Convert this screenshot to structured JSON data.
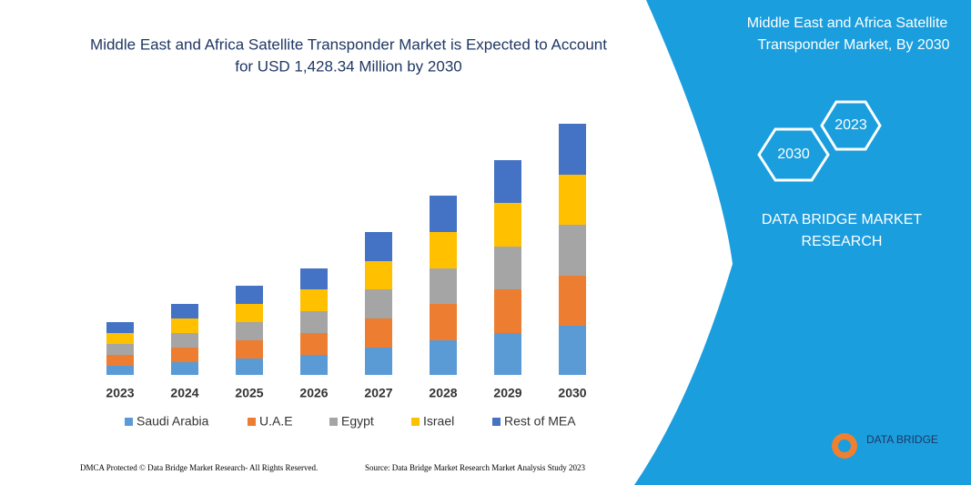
{
  "chart_data": {
    "type": "stacked_bar",
    "title": "Middle East and Africa Satellite Transponder Market is Expected to Account",
    "subtitle": "for USD 1,428.34 Million by 2030",
    "categories": [
      "2023",
      "2024",
      "2025",
      "2026",
      "2027",
      "2028",
      "2029",
      "2030"
    ],
    "series": [
      {
        "name": "Saudi Arabia",
        "color": "#5b9bd5",
        "values": [
          10,
          14,
          18,
          22,
          30,
          38,
          46,
          54
        ]
      },
      {
        "name": "U.A.E",
        "color": "#ed7d31",
        "values": [
          12,
          16,
          20,
          24,
          32,
          40,
          48,
          55
        ]
      },
      {
        "name": "Egypt",
        "color": "#a5a5a5",
        "values": [
          12,
          16,
          20,
          24,
          32,
          39,
          47,
          56
        ]
      },
      {
        "name": "Israel",
        "color": "#ffc000",
        "values": [
          12,
          16,
          20,
          24,
          31,
          40,
          48,
          55
        ]
      },
      {
        "name": "Rest of MEA",
        "color": "#4472c4",
        "values": [
          12,
          16,
          20,
          23,
          32,
          40,
          47,
          56
        ]
      }
    ],
    "ylim": [
      0,
      276
    ],
    "legend": "bottom"
  },
  "panel": {
    "title_line1": "Middle East and Africa Satellite",
    "title_line2": "Transponder Market, By 2030",
    "hex_front": "2030",
    "hex_back": "2023",
    "brand_line1": "DATA BRIDGE MARKET",
    "brand_line2": "RESEARCH",
    "logo": "DATA BRIDGE"
  },
  "footer": {
    "left": "DMCA Protected © Data Bridge Market Research- All Rights Reserved.",
    "right": "Source: Data Bridge Market Research Market Analysis Study 2023"
  }
}
